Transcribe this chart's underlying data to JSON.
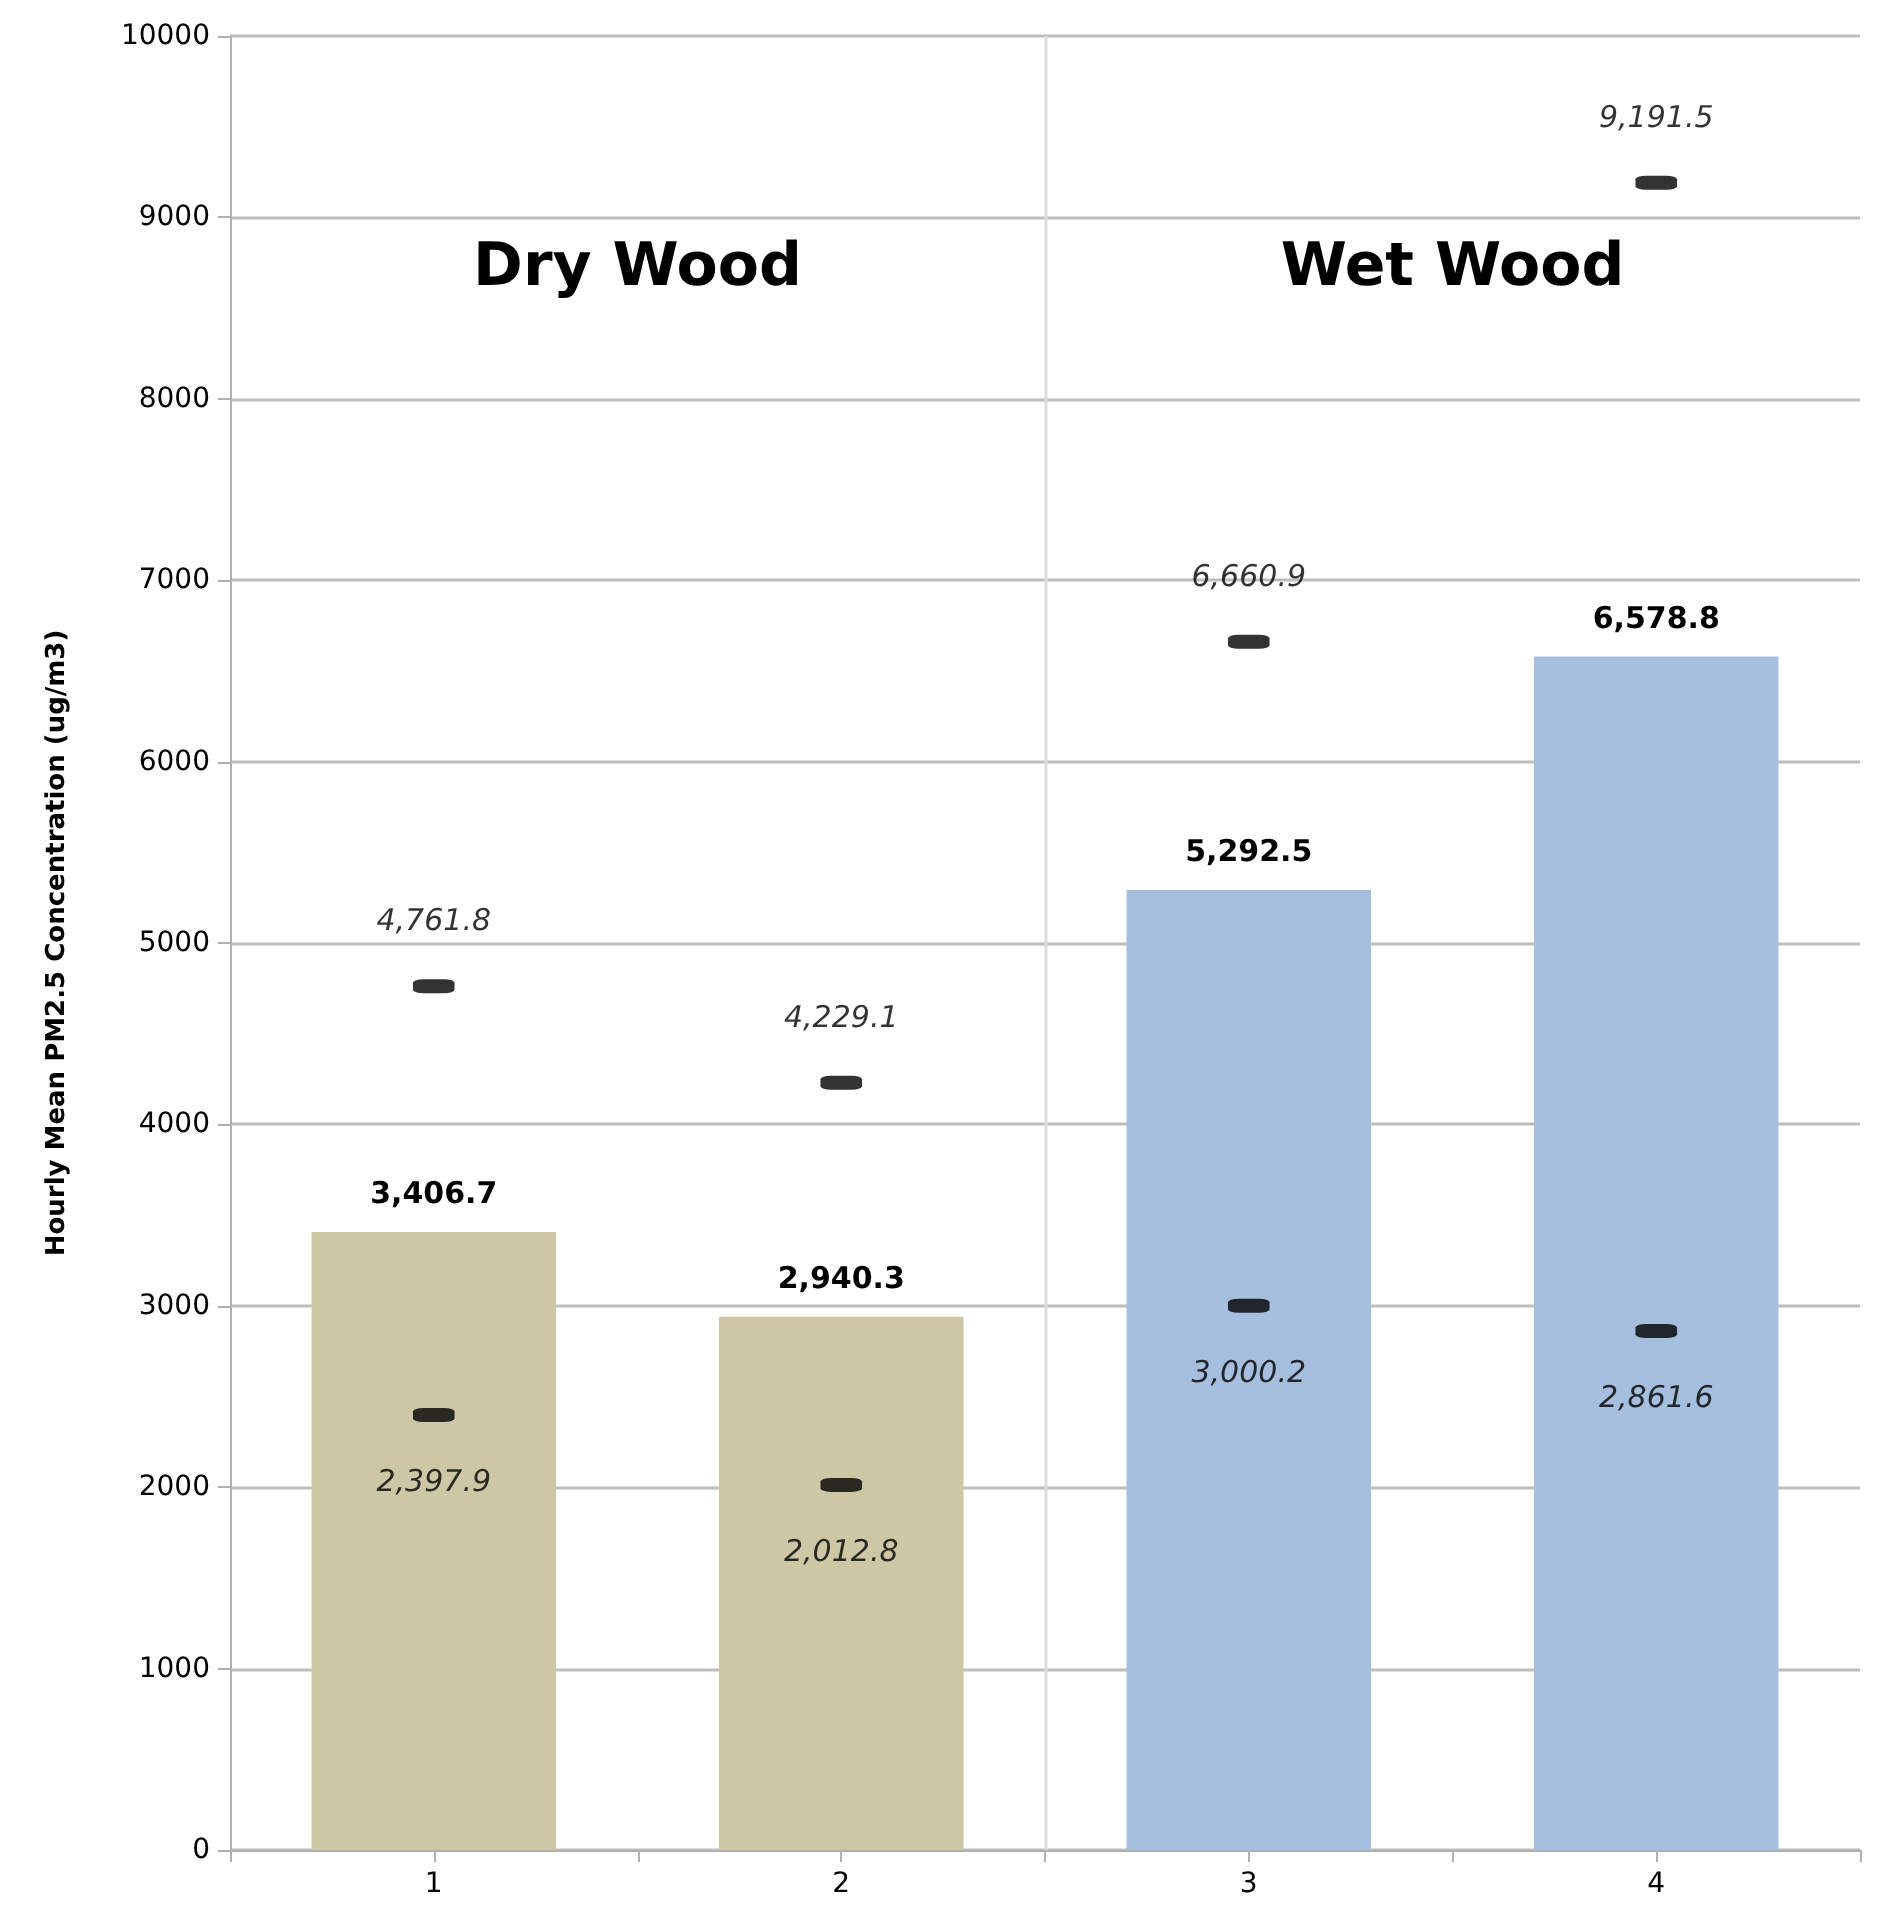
{
  "chart_data": {
    "type": "bar",
    "ylabel": "Hourly Mean PM2.5 Concentration (ug/m3)",
    "x": [
      1,
      2,
      3,
      4
    ],
    "xlim": [
      0.5,
      4.5
    ],
    "xticks": [
      {
        "value": 0.5,
        "label": null
      },
      1,
      {
        "value": 1.5,
        "label": null
      },
      2,
      {
        "value": 2.5,
        "label": null
      },
      3,
      {
        "value": 3.5,
        "label": null
      },
      4,
      {
        "value": 4.5,
        "label": null
      }
    ],
    "ylim": [
      0,
      10000
    ],
    "yticks": [
      0,
      1000,
      2000,
      3000,
      4000,
      5000,
      6000,
      7000,
      8000,
      9000,
      10000
    ],
    "grid": "y",
    "series": [
      {
        "values": [
          3406.7,
          2940.3,
          5292.5,
          6578.8
        ],
        "colors": [
          "#cdc7a6",
          "#cdc7a6",
          "#a7bfdf",
          "#a7bfdf"
        ],
        "value_labels": [
          "3,406.7",
          "2,940.3",
          "5,292.5",
          "6,578.8"
        ]
      },
      {
        "type": "scatter",
        "x": [
          1,
          2,
          3,
          4
        ],
        "values": [
          4761.8,
          4229.1,
          6660.9,
          9191.5
        ],
        "color": "#000000",
        "value_labels": [
          "4,761.8",
          "4,229.1",
          "6,660.9",
          "9,191.5"
        ]
      },
      {
        "type": "scatter",
        "x": [
          1,
          2,
          3,
          4
        ],
        "values": [
          2397.9,
          2012.8,
          3000.2,
          2861.6
        ],
        "color": "#000000",
        "value_labels": [
          "2,397.9",
          "2,012.8",
          "3,000.2",
          "2,861.6"
        ]
      }
    ],
    "ref_lines": [
      {
        "axis": "x",
        "value": 2.5,
        "color": "#dddddd"
      }
    ],
    "annotations": [
      "Dry Wood",
      "Wet Wood"
    ]
  }
}
